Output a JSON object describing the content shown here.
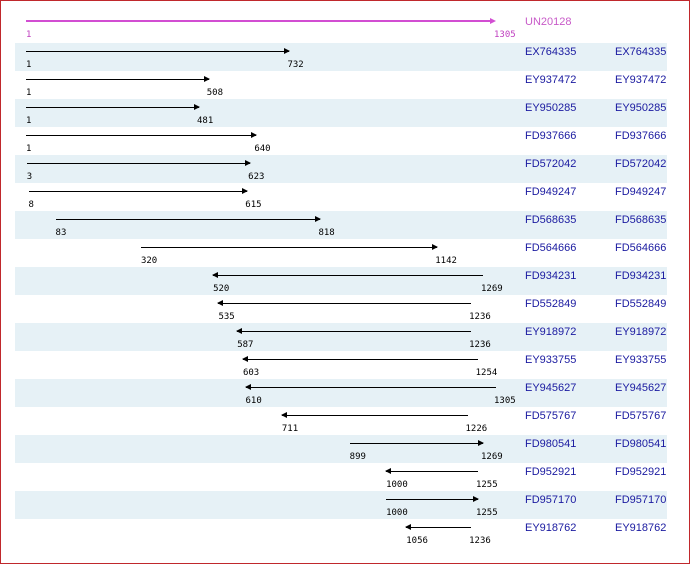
{
  "reference": {
    "id": "UN20128",
    "start": 1,
    "end": 1305
  },
  "alignments": [
    {
      "id": "EX764335",
      "id2": "EX764335",
      "start": 1,
      "end": 732,
      "dir": "forward"
    },
    {
      "id": "EY937472",
      "id2": "EY937472",
      "start": 1,
      "end": 508,
      "dir": "forward"
    },
    {
      "id": "EY950285",
      "id2": "EY950285",
      "start": 1,
      "end": 481,
      "dir": "forward"
    },
    {
      "id": "FD937666",
      "id2": "FD937666",
      "start": 1,
      "end": 640,
      "dir": "forward"
    },
    {
      "id": "FD572042",
      "id2": "FD572042",
      "start": 3,
      "end": 623,
      "dir": "forward"
    },
    {
      "id": "FD949247",
      "id2": "FD949247",
      "start": 8,
      "end": 615,
      "dir": "forward"
    },
    {
      "id": "FD568635",
      "id2": "FD568635",
      "start": 83,
      "end": 818,
      "dir": "forward"
    },
    {
      "id": "FD564666",
      "id2": "FD564666",
      "start": 320,
      "end": 1142,
      "dir": "forward"
    },
    {
      "id": "FD934231",
      "id2": "FD934231",
      "start": 520,
      "end": 1269,
      "dir": "reverse"
    },
    {
      "id": "FD552849",
      "id2": "FD552849",
      "start": 535,
      "end": 1236,
      "dir": "reverse"
    },
    {
      "id": "EY918972",
      "id2": "EY918972",
      "start": 587,
      "end": 1236,
      "dir": "reverse"
    },
    {
      "id": "EY933755",
      "id2": "EY933755",
      "start": 603,
      "end": 1254,
      "dir": "reverse"
    },
    {
      "id": "EY945627",
      "id2": "EY945627",
      "start": 610,
      "end": 1305,
      "dir": "reverse"
    },
    {
      "id": "FD575767",
      "id2": "FD575767",
      "start": 711,
      "end": 1226,
      "dir": "reverse"
    },
    {
      "id": "FD980541",
      "id2": "FD980541",
      "start": 899,
      "end": 1269,
      "dir": "forward"
    },
    {
      "id": "FD952921",
      "id2": "FD952921",
      "start": 1000,
      "end": 1255,
      "dir": "reverse"
    },
    {
      "id": "FD957170",
      "id2": "FD957170",
      "start": 1000,
      "end": 1255,
      "dir": "forward"
    },
    {
      "id": "EY918762",
      "id2": "EY918762",
      "start": 1056,
      "end": 1236,
      "dir": "reverse"
    }
  ],
  "colors": {
    "reference": "#d24ed2",
    "accession": "#1a1aa0",
    "shade": "#e6f1f6",
    "border": "#c0282c"
  }
}
